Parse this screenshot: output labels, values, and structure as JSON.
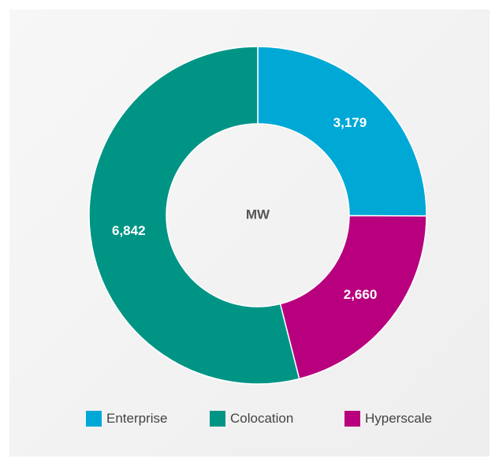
{
  "chart_data": {
    "type": "pie",
    "donut": true,
    "title": "",
    "center_label": "MW",
    "legend_position": "bottom",
    "categories": [
      "Enterprise",
      "Hyperscale",
      "Colocation"
    ],
    "values": [
      3179,
      2660,
      6842
    ],
    "value_labels": [
      "3,179",
      "2,660",
      "6,842"
    ],
    "colors": [
      "#00a8d6",
      "#b8007e",
      "#009485"
    ],
    "legend": [
      {
        "label": "Enterprise",
        "color": "#00a8d6"
      },
      {
        "label": "Colocation",
        "color": "#009485"
      },
      {
        "label": "Hyperscale",
        "color": "#b8007e"
      }
    ]
  }
}
